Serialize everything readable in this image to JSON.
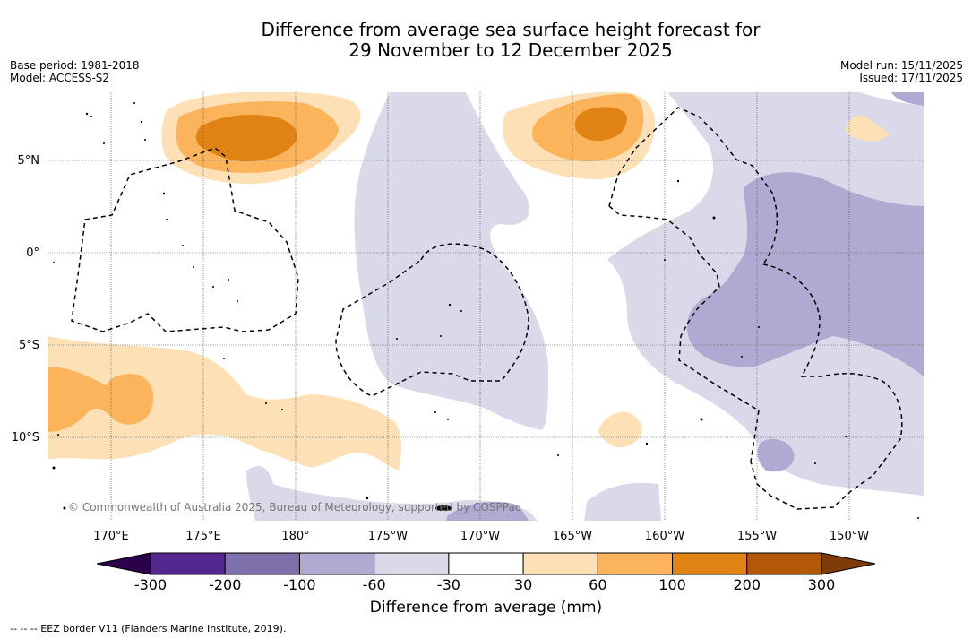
{
  "header": {
    "title_line1": "Difference from average sea surface height forecast for",
    "title_line2": "29 November to 12 December 2025",
    "base_period": "Base period: 1981-2018",
    "model": "Model: ACCESS-S2",
    "model_run": "Model run: 15/11/2025",
    "issued": "Issued: 17/11/2025"
  },
  "map": {
    "lon_labels": [
      "170°E",
      "175°E",
      "180°",
      "175°W",
      "170°W",
      "165°W",
      "160°W",
      "155°W",
      "150°W"
    ],
    "lat_labels": [
      "5°N",
      "0°",
      "5°S",
      "10°S"
    ],
    "copyright": "© Commonwealth of Australia 2025, Bureau of Meteorology, supported by COSPPac"
  },
  "colorbar": {
    "ticks": [
      "-300",
      "-200",
      "-100",
      "-60",
      "-30",
      "30",
      "60",
      "100",
      "200",
      "300"
    ],
    "colors": [
      "#54278f",
      "#7e71ab",
      "#b0a9d1",
      "#d9d9ea",
      "#ffffff",
      "#fde0b5",
      "#fbb45c",
      "#e08214",
      "#b35806"
    ],
    "low_extend_color": "#2d004b",
    "high_extend_color": "#7f3b08",
    "label": "Difference from average (mm)"
  },
  "legend": {
    "eez_text": "--  --  -- EEZ border V11 (Flanders Marine Institute, 2019)."
  }
}
